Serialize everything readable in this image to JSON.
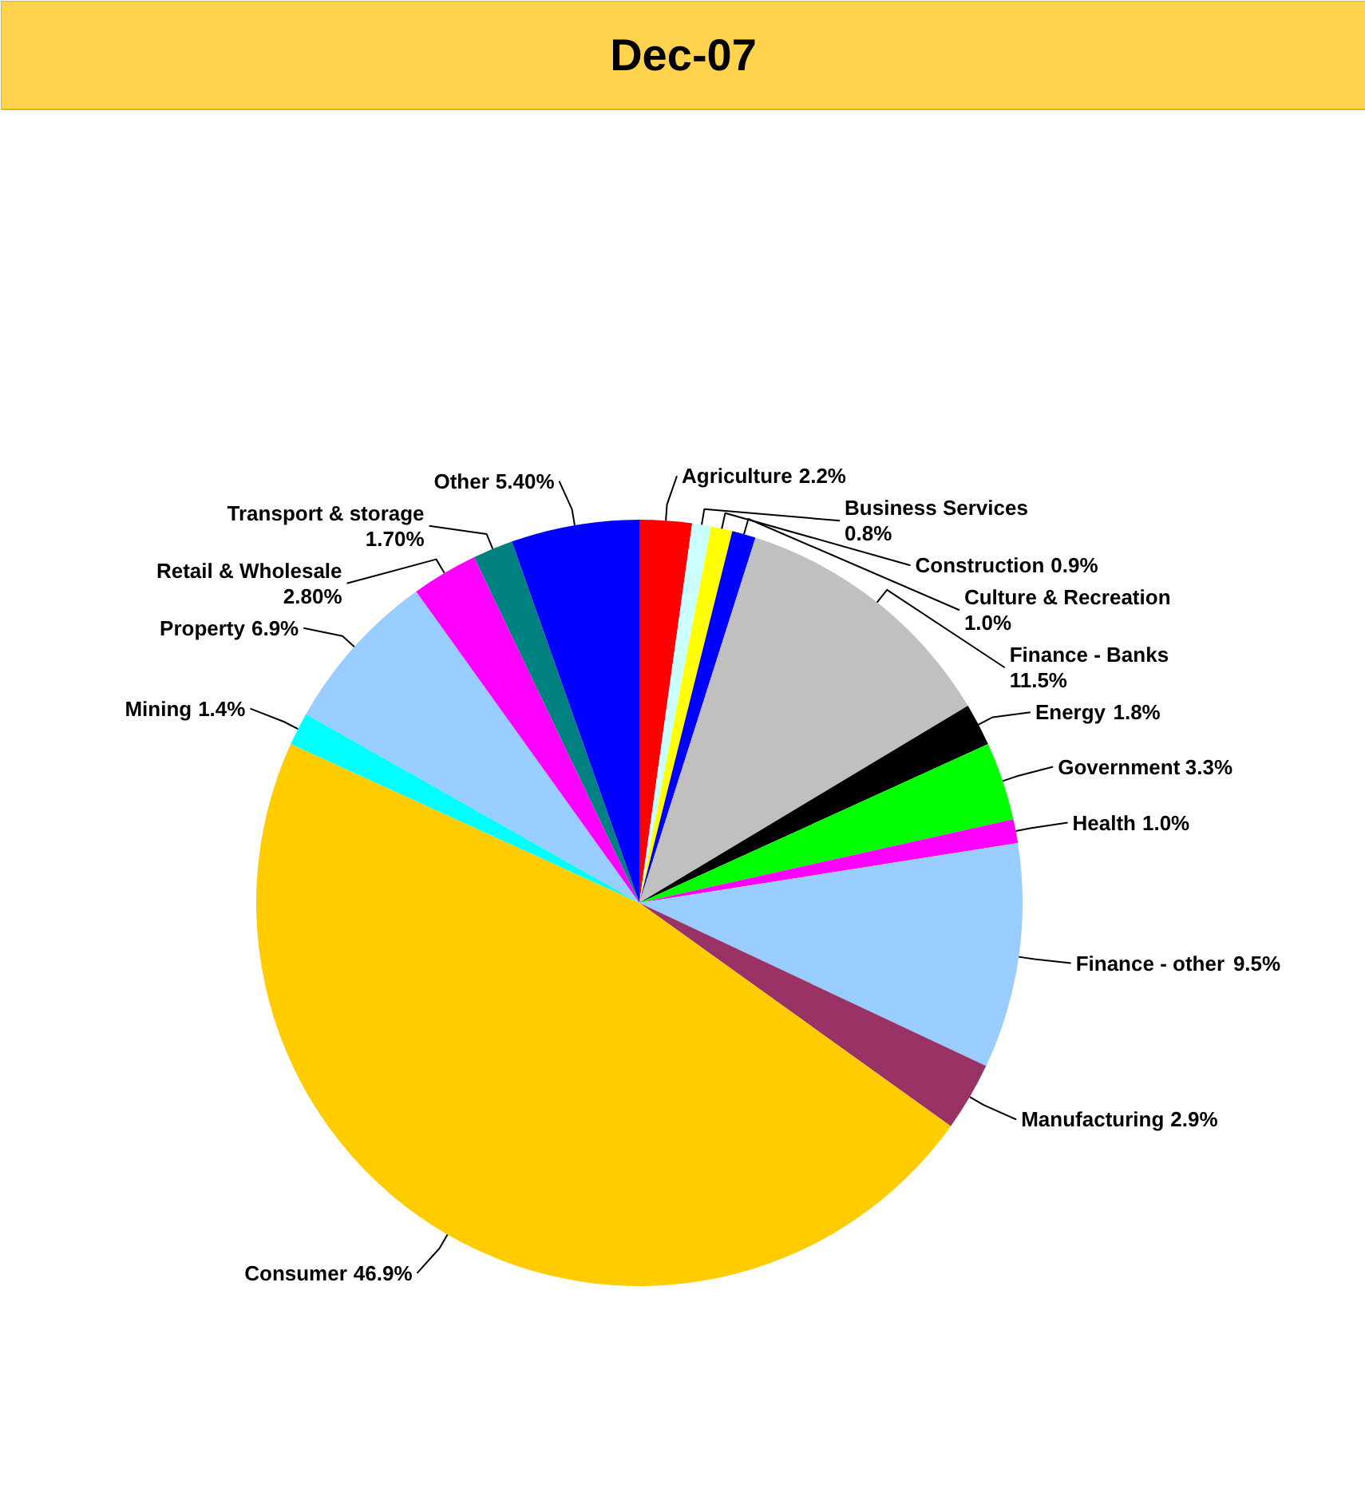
{
  "chart_data": {
    "type": "pie",
    "title": "Dec-07",
    "categories": [
      "Agriculture",
      "Business Services",
      "Construction",
      "Culture & Recreation",
      "Finance - Banks",
      "Energy",
      "Government",
      "Health",
      "Finance - other",
      "Manufacturing",
      "Consumer",
      "Mining",
      "Property",
      "Retail & Wholesale",
      "Transport & storage",
      "Other"
    ],
    "values": [
      2.2,
      0.8,
      0.9,
      1.0,
      11.5,
      1.8,
      3.3,
      1.0,
      9.5,
      2.9,
      46.9,
      1.4,
      6.9,
      2.8,
      1.7,
      5.4
    ],
    "colors": [
      "#ff0000",
      "#ccffff",
      "#ffff00",
      "#0000ff",
      "#c0c0c0",
      "#000000",
      "#00ff00",
      "#ff00ff",
      "#99ccff",
      "#993366",
      "#ffcc00",
      "#00ffff",
      "#99ccff",
      "#ff00ff",
      "#008080",
      "#0000ff"
    ],
    "value_labels": [
      "2.2%",
      "0.8%",
      "0.9%",
      "1.0%",
      "11.5%",
      "1.8%",
      "3.3%",
      "1.0%",
      "9.5%",
      "2.9%",
      "46.9%",
      "1.4%",
      "6.9%",
      "2.80%",
      "1.70%",
      "5.40%"
    ],
    "legend": false
  }
}
